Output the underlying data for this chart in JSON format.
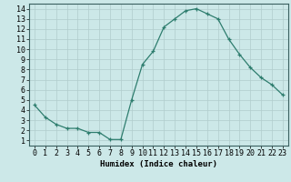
{
  "x": [
    0,
    1,
    2,
    3,
    4,
    5,
    6,
    7,
    8,
    9,
    10,
    11,
    12,
    13,
    14,
    15,
    16,
    17,
    18,
    19,
    20,
    21,
    22,
    23
  ],
  "y": [
    4.5,
    3.3,
    2.6,
    2.2,
    2.2,
    1.8,
    1.8,
    1.1,
    1.1,
    5.0,
    8.5,
    9.8,
    12.2,
    13.0,
    13.8,
    14.0,
    13.5,
    13.0,
    11.0,
    9.5,
    8.2,
    7.2,
    6.5,
    5.5
  ],
  "line_color": "#2e7d6e",
  "marker": "+",
  "marker_size": 3,
  "bg_color": "#cce8e8",
  "grid_color": "#b0cccc",
  "xlabel": "Humidex (Indice chaleur)",
  "xlim": [
    -0.5,
    23.5
  ],
  "ylim": [
    0.5,
    14.5
  ],
  "yticks": [
    1,
    2,
    3,
    4,
    5,
    6,
    7,
    8,
    9,
    10,
    11,
    12,
    13,
    14
  ],
  "xticks": [
    0,
    1,
    2,
    3,
    4,
    5,
    6,
    7,
    8,
    9,
    10,
    11,
    12,
    13,
    14,
    15,
    16,
    17,
    18,
    19,
    20,
    21,
    22,
    23
  ],
  "xlabel_fontsize": 6.5,
  "tick_fontsize": 6
}
